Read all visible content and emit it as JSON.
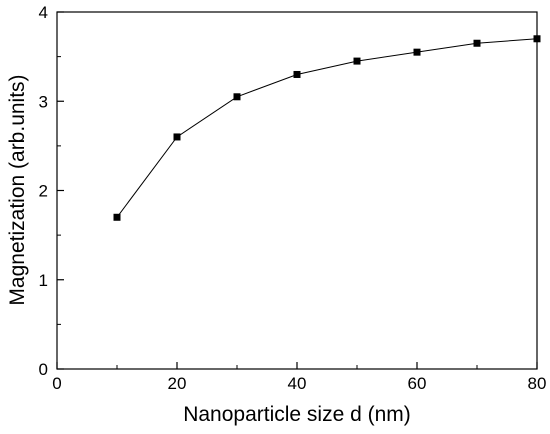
{
  "chart_data": {
    "type": "line",
    "title": "",
    "xlabel": "Nanoparticle size d (nm)",
    "ylabel": "Magnetization (arb.units)",
    "xlim": [
      0,
      80
    ],
    "ylim": [
      0,
      4
    ],
    "xticks": [
      0,
      20,
      40,
      60,
      80
    ],
    "yticks": [
      0,
      1,
      2,
      3,
      4
    ],
    "grid": false,
    "legend": "none",
    "marker": "square",
    "colors": {
      "line": "#000000",
      "marker": "#000000",
      "axis": "#000000"
    },
    "series": [
      {
        "x": [
          10,
          20,
          30,
          40,
          50,
          60,
          70,
          80
        ],
        "y": [
          1.7,
          2.6,
          3.05,
          3.3,
          3.45,
          3.55,
          3.65,
          3.7
        ]
      }
    ]
  }
}
